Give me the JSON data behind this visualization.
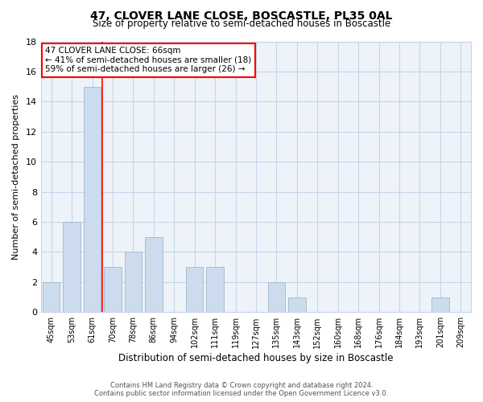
{
  "title": "47, CLOVER LANE CLOSE, BOSCASTLE, PL35 0AL",
  "subtitle": "Size of property relative to semi-detached houses in Boscastle",
  "xlabel": "Distribution of semi-detached houses by size in Boscastle",
  "ylabel": "Number of semi-detached properties",
  "footer_line1": "Contains HM Land Registry data © Crown copyright and database right 2024.",
  "footer_line2": "Contains public sector information licensed under the Open Government Licence v3.0.",
  "categories": [
    "45sqm",
    "53sqm",
    "61sqm",
    "70sqm",
    "78sqm",
    "86sqm",
    "94sqm",
    "102sqm",
    "111sqm",
    "119sqm",
    "127sqm",
    "135sqm",
    "143sqm",
    "152sqm",
    "160sqm",
    "168sqm",
    "176sqm",
    "184sqm",
    "193sqm",
    "201sqm",
    "209sqm"
  ],
  "values": [
    2,
    6,
    15,
    3,
    4,
    5,
    0,
    3,
    3,
    0,
    0,
    2,
    1,
    0,
    0,
    0,
    0,
    0,
    0,
    1,
    0
  ],
  "bar_color": "#ccdcee",
  "bar_edge_color": "#aabcce",
  "grid_color": "#c5d5e8",
  "background_color": "#eef3fa",
  "property_label": "47 CLOVER LANE CLOSE: 66sqm",
  "annotation_line1": "← 41% of semi-detached houses are smaller (18)",
  "annotation_line2": "59% of semi-detached houses are larger (26) →",
  "red_line_x": 2.5,
  "ylim": [
    0,
    18
  ],
  "yticks": [
    0,
    2,
    4,
    6,
    8,
    10,
    12,
    14,
    16,
    18
  ]
}
